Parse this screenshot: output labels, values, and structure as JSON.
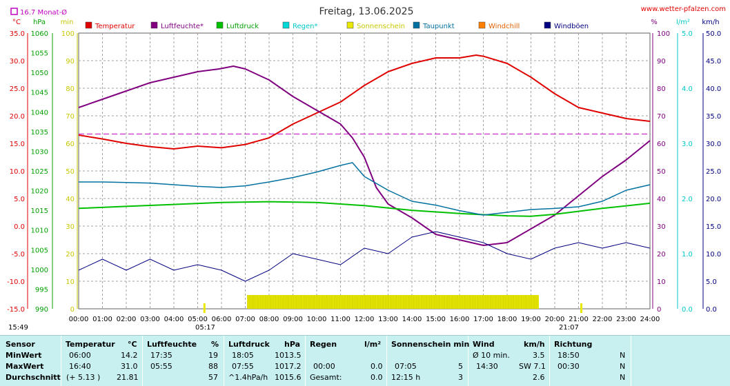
{
  "header": {
    "title": "Freitag, 13.06.2025",
    "website": "www.wetter-pfalzen.com",
    "avg_label": "16.7 Monat-Ø",
    "sunrise_time": "05:17",
    "sunset_time": "21:07",
    "left_footer_time": "15:49"
  },
  "colors": {
    "temperature": "#e00000",
    "humidity": "#800080",
    "pressure": "#00c000",
    "rain": "#00d8d8",
    "sunshine": "#e8e800",
    "dewpoint": "#0070a0",
    "windchill": "#ff8000",
    "gusts": "#000080",
    "grid": "#a0a0a0",
    "stats_bg": "#c8f0f0"
  },
  "chart_data": {
    "type": "line",
    "title": "Freitag, 13.06.2025",
    "legend": [
      "Temperatur",
      "Luftfeuchte*",
      "Luftdruck",
      "Regen*",
      "Sonnenschein",
      "Taupunkt",
      "Windchill",
      "Windböen"
    ],
    "axes": {
      "temp_unit": "°C",
      "temp_range": [
        -15,
        35
      ],
      "temp_ticks": [
        "35.0",
        "30.0",
        "25.0",
        "20.0",
        "15.0",
        "10.0",
        "5.0",
        "0.0",
        "-5.0",
        "-10.0",
        "-15.0"
      ],
      "pressure_unit": "hPa",
      "pressure_range": [
        990,
        1060
      ],
      "pressure_ticks": [
        "1060",
        "1055",
        "1050",
        "1045",
        "1040",
        "1035",
        "1030",
        "1025",
        "1020",
        "1015",
        "1010",
        "1005",
        "1000",
        "995",
        "990"
      ],
      "sun_unit": "min",
      "sun_range": [
        0,
        100
      ],
      "sun_ticks": [
        "100",
        "90",
        "80",
        "70",
        "60",
        "50",
        "40",
        "30",
        "20",
        "10",
        "0"
      ],
      "humidity_unit": "%",
      "humidity_range": [
        0,
        100
      ],
      "humidity_ticks": [
        "100",
        "90",
        "80",
        "70",
        "60",
        "50",
        "40",
        "30",
        "20",
        "10",
        "0"
      ],
      "rain_unit": "l/m²",
      "rain_range": [
        0,
        5
      ],
      "rain_ticks": [
        "5.0",
        "4.0",
        "3.0",
        "2.0",
        "1.0",
        "0.0"
      ],
      "wind_unit": "km/h",
      "wind_range": [
        0,
        50
      ],
      "wind_ticks": [
        "50.0",
        "45.0",
        "40.0",
        "35.0",
        "30.0",
        "25.0",
        "20.0",
        "15.0",
        "10.0",
        "5.0",
        "0.0"
      ],
      "x_ticks": [
        "00:00",
        "01:00",
        "02:00",
        "03:00",
        "04:00",
        "05:00",
        "06:00",
        "07:00",
        "08:00",
        "09:00",
        "10:00",
        "11:00",
        "12:00",
        "13:00",
        "14:00",
        "15:00",
        "16:00",
        "17:00",
        "18:00",
        "19:00",
        "20:00",
        "21:00",
        "22:00",
        "23:00",
        "24:00"
      ]
    },
    "month_avg_temp": 16.7,
    "series": [
      {
        "name": "Temperatur",
        "x": [
          0,
          1,
          2,
          3,
          4,
          5,
          6,
          7,
          8,
          9,
          10,
          11,
          12,
          13,
          14,
          15,
          16,
          16.7,
          17,
          18,
          19,
          20,
          21,
          22,
          23,
          24
        ],
        "values": [
          16.5,
          15.8,
          15.0,
          14.4,
          14.0,
          14.5,
          14.2,
          14.8,
          16.0,
          18.5,
          20.5,
          22.5,
          25.5,
          28.0,
          29.5,
          30.5,
          30.5,
          31.0,
          30.8,
          29.5,
          27.0,
          24.0,
          21.5,
          20.5,
          19.5,
          19.0
        ]
      },
      {
        "name": "Luftfeuchte*",
        "x": [
          0,
          1,
          2,
          3,
          4,
          5,
          5.9,
          6.5,
          7,
          8,
          9,
          10,
          11,
          11.5,
          12,
          12.5,
          13,
          14,
          15,
          16,
          17,
          18,
          19,
          20,
          21,
          22,
          23,
          24
        ],
        "values": [
          73,
          76,
          79,
          82,
          84,
          86,
          87,
          88,
          87,
          83,
          77,
          72,
          67,
          62,
          55,
          44,
          38,
          33,
          27,
          25,
          23,
          24,
          29,
          34,
          41,
          48,
          54,
          61
        ]
      },
      {
        "name": "Luftdruck",
        "x": [
          0,
          2,
          4,
          6,
          8,
          10,
          12,
          14,
          16,
          18,
          19,
          20,
          22,
          24
        ],
        "values": [
          1015.5,
          1016.0,
          1016.5,
          1017.0,
          1017.2,
          1017.0,
          1016.2,
          1015.0,
          1014.2,
          1013.6,
          1013.5,
          1014.0,
          1015.5,
          1016.8
        ]
      },
      {
        "name": "Taupunkt",
        "x": [
          0,
          1,
          2,
          3,
          4,
          5,
          6,
          7,
          8,
          9,
          10,
          11,
          11.5,
          12,
          13,
          14,
          15,
          16,
          17,
          18,
          19,
          20,
          21,
          22,
          23,
          24
        ],
        "values": [
          8.0,
          8.0,
          7.9,
          7.8,
          7.5,
          7.2,
          7.0,
          7.3,
          8.0,
          8.8,
          9.8,
          11.0,
          11.5,
          9.0,
          6.5,
          4.5,
          3.8,
          2.8,
          2.0,
          2.5,
          3.0,
          3.2,
          3.5,
          4.5,
          6.5,
          7.5
        ]
      },
      {
        "name": "Windböen",
        "x": [
          0,
          1,
          2,
          3,
          4,
          5,
          6,
          7,
          8,
          9,
          10,
          11,
          12,
          13,
          14,
          15,
          16,
          17,
          18,
          19,
          20,
          21,
          22,
          23,
          24
        ],
        "values": [
          7,
          9,
          7,
          9,
          7,
          8,
          7,
          5,
          7,
          10,
          9,
          8,
          11,
          10,
          13,
          14,
          13,
          12,
          10,
          9,
          11,
          12,
          11,
          12,
          11
        ]
      }
    ],
    "sunshine_interval": [
      "07:05",
      "19:20"
    ]
  },
  "stats": {
    "row_labels": [
      "Sensor",
      "MinWert",
      "MaxWert",
      "Durchschnitt"
    ],
    "temp": {
      "header": "Temperatur",
      "unit": "°C",
      "min_time": "06:00",
      "min": "14.2",
      "max_time": "16:40",
      "max": "31.0",
      "avg_note": "(+ 5.13 )",
      "avg": "21.81"
    },
    "humidity": {
      "header": "Luftfeuchte",
      "unit": "%",
      "min_time": "17:35",
      "min": "19",
      "max_time": "05:55",
      "max": "88",
      "avg": "57"
    },
    "pressure": {
      "header": "Luftdruck",
      "unit": "hPa",
      "min_time": "18:05",
      "min": "1013.5",
      "max_time": "07:55",
      "max": "1017.2",
      "avg_note": "^1.4hPa/h",
      "avg": "1015.6"
    },
    "rain": {
      "header": "Regen",
      "unit": "l/m²",
      "min": "",
      "max_time": "00:00",
      "max": "0.0",
      "avg_note": "Gesamt:",
      "avg": "0.0"
    },
    "sun": {
      "header": "Sonnenschein min",
      "max_time": "07:05",
      "max": "5",
      "avg_note": "12:15 h",
      "avg": "3"
    },
    "wind": {
      "header": "Wind",
      "unit": "km/h",
      "min_label": "Ø 10 min.",
      "min": "3.5",
      "max_time": "14:30",
      "max": "SW 7.1",
      "avg": "2.6"
    },
    "direction": {
      "header": "Richtung",
      "min_time": "18:50",
      "min": "N",
      "max_time": "00:30",
      "max": "N",
      "avg": "N"
    }
  }
}
